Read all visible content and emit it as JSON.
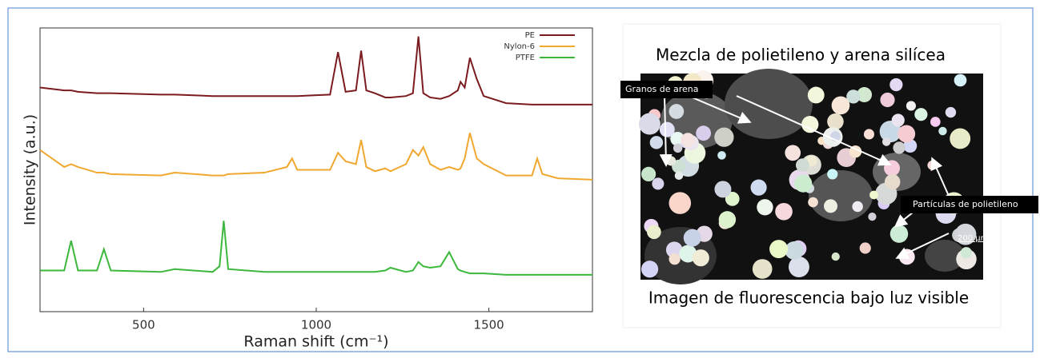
{
  "chart_data": {
    "type": "line",
    "x_label": "Raman shift (cm⁻¹)",
    "y_label": "Intensity (a.u.)",
    "x": [
      200,
      270,
      290,
      310,
      365,
      385,
      405,
      550,
      590,
      700,
      720,
      732,
      745,
      850,
      915,
      930,
      945,
      1040,
      1063,
      1085,
      1115,
      1130,
      1145,
      1170,
      1200,
      1215,
      1260,
      1280,
      1296,
      1310,
      1330,
      1360,
      1385,
      1410,
      1418,
      1430,
      1445,
      1465,
      1485,
      1550,
      1625,
      1640,
      1655,
      1700,
      1800
    ],
    "series": [
      {
        "name": "PE",
        "color": "#7b1a1f",
        "values": [
          79,
          78,
          78,
          77.5,
          77,
          77,
          77,
          76.5,
          76.5,
          76,
          76,
          76,
          76,
          76,
          76,
          76,
          76,
          76.5,
          91.5,
          77.5,
          78,
          92,
          78,
          77,
          75.5,
          75.5,
          76,
          77,
          97,
          77,
          75.5,
          75,
          76,
          78,
          81,
          79,
          89.5,
          82,
          76,
          73.5,
          73,
          73,
          73,
          73,
          73
        ]
      },
      {
        "name": "Nylon-6",
        "color": "#f0a830",
        "values": [
          57,
          51,
          52,
          51,
          49,
          49,
          48.5,
          48,
          49,
          48,
          48,
          48,
          48.5,
          49,
          51,
          54,
          50,
          50,
          56,
          53,
          52,
          60.5,
          51,
          49.5,
          50.5,
          49.5,
          52,
          57,
          55,
          58,
          52,
          50,
          51,
          50,
          50.5,
          54,
          63,
          54,
          52,
          48,
          48,
          54,
          48.5,
          47,
          46.5
        ]
      },
      {
        "name": "PTFE",
        "color": "#3cb83c",
        "values": [
          14.5,
          14.5,
          25,
          14.5,
          14.5,
          22,
          14.5,
          14,
          15,
          14,
          16,
          32,
          15,
          14,
          14,
          14,
          14,
          14,
          14,
          14,
          14,
          14,
          14,
          14,
          14.5,
          15.5,
          14,
          14.5,
          17.5,
          16,
          15.5,
          16,
          21,
          15,
          14.5,
          14,
          13.5,
          13.5,
          13.5,
          13,
          13,
          13,
          13,
          13,
          13
        ]
      }
    ],
    "xlim": [
      200,
      1800
    ],
    "xticks": [
      500,
      1000,
      1500
    ],
    "ylim": [
      0,
      100
    ],
    "grid": false,
    "legend": "upper right"
  },
  "image_panel": {
    "title": "Mezcla de polietileno y arena silícea",
    "labels": [
      "Granos de arena",
      "Partículas de polietileno",
      "200 µm"
    ],
    "caption": "Imagen de fluorescencia bajo luz visible"
  }
}
